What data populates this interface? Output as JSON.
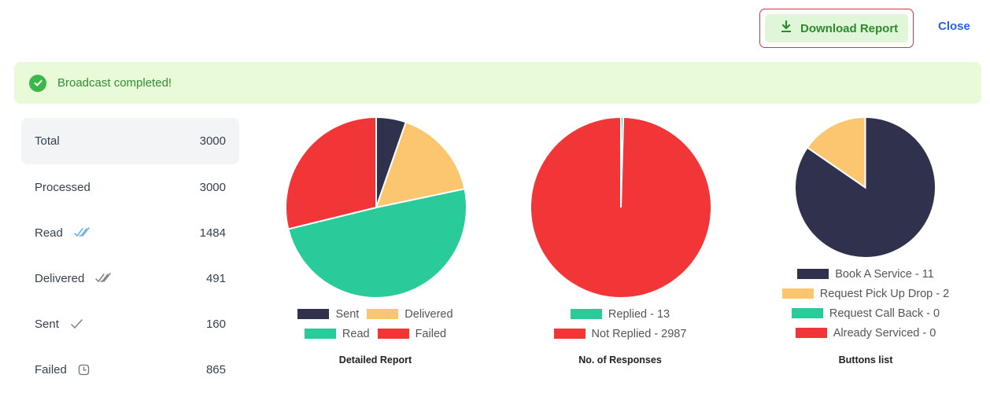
{
  "header": {
    "download_label": "Download Report",
    "close_label": "Close"
  },
  "banner": {
    "message": "Broadcast completed!"
  },
  "stats": [
    {
      "label": "Total",
      "value": "3000",
      "icon": ""
    },
    {
      "label": "Processed",
      "value": "3000",
      "icon": ""
    },
    {
      "label": "Read",
      "value": "1484",
      "icon": "double-check-blue-icon"
    },
    {
      "label": "Delivered",
      "value": "491",
      "icon": "double-check-gray-icon"
    },
    {
      "label": "Sent",
      "value": "160",
      "icon": "check-icon"
    },
    {
      "label": "Failed",
      "value": "865",
      "icon": "clock-icon"
    }
  ],
  "colors": {
    "navy": "#30324d",
    "yellow": "#fcc56f",
    "green": "#2acb9b",
    "red": "#f23638",
    "accent": "#2563eb",
    "success": "#3cb84a"
  },
  "chart_data": [
    {
      "type": "pie",
      "title": "Detailed Report",
      "categories": [
        "Sent",
        "Delivered",
        "Read",
        "Failed"
      ],
      "values": [
        160,
        491,
        1484,
        865
      ],
      "colors": [
        "#30324d",
        "#fcc56f",
        "#2acb9b",
        "#f23638"
      ],
      "legend_rows": [
        [
          "Sent",
          "Delivered"
        ],
        [
          "Read",
          "Failed"
        ]
      ],
      "legend": "bottom"
    },
    {
      "type": "pie",
      "title": "No. of Responses",
      "categories": [
        "Replied - 13",
        "Not Replied - 2987"
      ],
      "values": [
        13,
        2987
      ],
      "colors": [
        "#2acb9b",
        "#f23638"
      ],
      "legend_rows": [
        [
          "Replied - 13"
        ],
        [
          "Not Replied - 2987"
        ]
      ],
      "legend": "bottom"
    },
    {
      "type": "pie",
      "title": "Buttons list",
      "categories": [
        "Book A Service - 11",
        "Request Pick Up Drop - 2",
        "Request Call Back - 0",
        "Already Serviced - 0"
      ],
      "values": [
        11,
        2,
        0,
        0
      ],
      "colors": [
        "#30324d",
        "#fcc56f",
        "#2acb9b",
        "#f23638"
      ],
      "legend_rows": [
        [
          "Book A Service - 11"
        ],
        [
          "Request Pick Up Drop - 2"
        ],
        [
          "Request Call Back - 0"
        ],
        [
          "Already Serviced - 0"
        ]
      ],
      "legend": "bottom"
    }
  ]
}
